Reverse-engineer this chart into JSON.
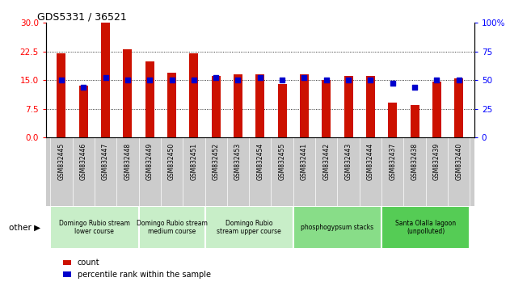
{
  "title": "GDS5331 / 36521",
  "samples": [
    "GSM832445",
    "GSM832446",
    "GSM832447",
    "GSM832448",
    "GSM832449",
    "GSM832450",
    "GSM832451",
    "GSM832452",
    "GSM832453",
    "GSM832454",
    "GSM832455",
    "GSM832441",
    "GSM832442",
    "GSM832443",
    "GSM832444",
    "GSM832437",
    "GSM832438",
    "GSM832439",
    "GSM832440"
  ],
  "counts": [
    22.0,
    13.5,
    30.0,
    23.0,
    20.0,
    17.0,
    22.0,
    16.0,
    16.5,
    16.5,
    14.0,
    16.5,
    15.0,
    16.0,
    16.0,
    9.0,
    8.5,
    14.5,
    15.5
  ],
  "percentiles": [
    50,
    44,
    52,
    50,
    50,
    50,
    50,
    52,
    50,
    52,
    50,
    52,
    50,
    50,
    50,
    47,
    44,
    50,
    50
  ],
  "groups": [
    {
      "label": "Domingo Rubio stream\nlower course",
      "start": 0,
      "end": 4
    },
    {
      "label": "Domingo Rubio stream\nmedium course",
      "start": 4,
      "end": 7
    },
    {
      "label": "Domingo Rubio\nstream upper course",
      "start": 7,
      "end": 11
    },
    {
      "label": "phosphogypsum stacks",
      "start": 11,
      "end": 15
    },
    {
      "label": "Santa Olalla lagoon\n(unpolluted)",
      "start": 15,
      "end": 19
    }
  ],
  "group_colors": [
    "#c8eec8",
    "#c8eec8",
    "#c8eec8",
    "#88dd88",
    "#55cc55"
  ],
  "bar_color": "#cc1100",
  "dot_color": "#0000cc",
  "ylim_left": [
    0,
    30
  ],
  "ylim_right": [
    0,
    100
  ],
  "yticks_left": [
    0,
    7.5,
    15,
    22.5,
    30
  ],
  "yticks_right": [
    0,
    25,
    50,
    75,
    100
  ],
  "grid_lines": [
    7.5,
    15,
    22.5
  ],
  "xtick_bg": "#cccccc",
  "bar_width": 0.4
}
